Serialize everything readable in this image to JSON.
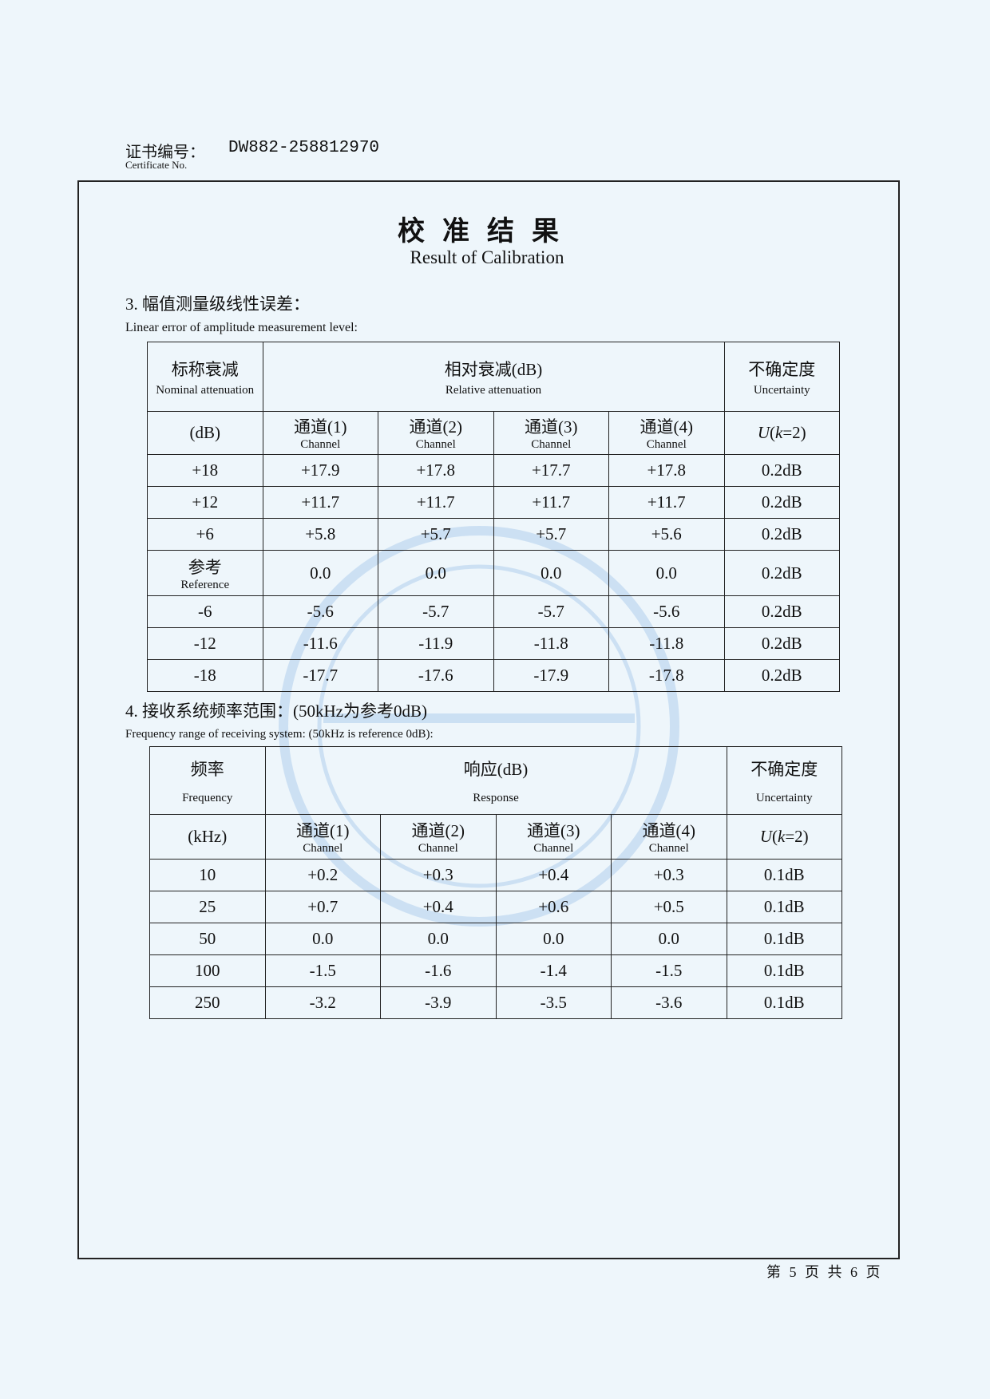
{
  "header": {
    "cert_label_cn": "证书编号：",
    "cert_label_en": "Certificate No.",
    "cert_number": "DW882-258812970"
  },
  "title": {
    "cn": "校准结果",
    "en": "Result of Calibration"
  },
  "section3": {
    "title_cn": "3. 幅值测量级线性误差：",
    "title_en": "Linear error of amplitude measurement level:",
    "headers": {
      "nominal_cn": "标称衰减",
      "nominal_en": "Nominal attenuation",
      "relative_cn": "相对衰减(dB)",
      "relative_en": "Relative attenuation",
      "uncert_cn": "不确定度",
      "uncert_en": "Uncertainty",
      "unit": "(dB)",
      "channels_cn": [
        "通道(1)",
        "通道(2)",
        "通道(3)",
        "通道(4)"
      ],
      "channel_en": "Channel",
      "k_u": "U",
      "k_mid": "(",
      "k_k": "k",
      "k_end": "=2)"
    },
    "rows": [
      {
        "nominal": "+18",
        "values": [
          "+17.9",
          "+17.8",
          "+17.7",
          "+17.8"
        ],
        "uncertainty": "0.2dB"
      },
      {
        "nominal": "+12",
        "values": [
          "+11.7",
          "+11.7",
          "+11.7",
          "+11.7"
        ],
        "uncertainty": "0.2dB"
      },
      {
        "nominal": "+6",
        "values": [
          "+5.8",
          "+5.7",
          "+5.7",
          "+5.6"
        ],
        "uncertainty": "0.2dB"
      },
      {
        "nominal": "参考",
        "nominal_en": "Reference",
        "values": [
          "0.0",
          "0.0",
          "0.0",
          "0.0"
        ],
        "uncertainty": "0.2dB"
      },
      {
        "nominal": "-6",
        "values": [
          "-5.6",
          "-5.7",
          "-5.7",
          "-5.6"
        ],
        "uncertainty": "0.2dB"
      },
      {
        "nominal": "-12",
        "values": [
          "-11.6",
          "-11.9",
          "-11.8",
          "-11.8"
        ],
        "uncertainty": "0.2dB"
      },
      {
        "nominal": "-18",
        "values": [
          "-17.7",
          "-17.6",
          "-17.9",
          "-17.8"
        ],
        "uncertainty": "0.2dB"
      }
    ]
  },
  "section4": {
    "title_cn": "4. 接收系统频率范围：(50kHz为参考0dB)",
    "title_en": "Frequency range of receiving system: (50kHz is reference 0dB):",
    "headers": {
      "freq_cn": "频率",
      "freq_en": "Frequency",
      "resp_cn": "响应(dB)",
      "resp_en": "Response",
      "uncert_cn": "不确定度",
      "uncert_en": "Uncertainty",
      "unit": "(kHz)"
    },
    "rows": [
      {
        "freq": "10",
        "values": [
          "+0.2",
          "+0.3",
          "+0.4",
          "+0.3"
        ],
        "uncertainty": "0.1dB"
      },
      {
        "freq": "25",
        "values": [
          "+0.7",
          "+0.4",
          "+0.6",
          "+0.5"
        ],
        "uncertainty": "0.1dB"
      },
      {
        "freq": "50",
        "values": [
          "0.0",
          "0.0",
          "0.0",
          "0.0"
        ],
        "uncertainty": "0.1dB"
      },
      {
        "freq": "100",
        "values": [
          "-1.5",
          "-1.6",
          "-1.4",
          "-1.5"
        ],
        "uncertainty": "0.1dB"
      },
      {
        "freq": "250",
        "values": [
          "-3.2",
          "-3.9",
          "-3.5",
          "-3.6"
        ],
        "uncertainty": "0.1dB"
      }
    ]
  },
  "footer": {
    "page": "第 5 页 共 6 页"
  },
  "colors": {
    "background": "#eef6fb",
    "stamp": "#9cc3e6"
  }
}
